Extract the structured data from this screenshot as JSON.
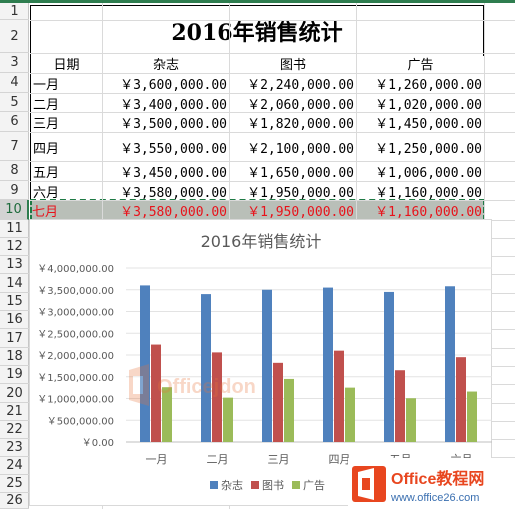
{
  "sheet": {
    "row_numbers": [
      "1",
      "2",
      "3",
      "4",
      "5",
      "6",
      "7",
      "8",
      "9",
      "10",
      "11",
      "12",
      "13",
      "14",
      "15",
      "16",
      "17",
      "18",
      "19",
      "20",
      "21",
      "22",
      "23",
      "24",
      "25",
      "26"
    ],
    "selected_row": "10",
    "title": "2016年销售统计",
    "headers": [
      "日期",
      "杂志",
      "图书",
      "广告"
    ],
    "rows": [
      [
        "一月",
        "￥3,600,000.00",
        "￥2,240,000.00",
        "￥1,260,000.00"
      ],
      [
        "二月",
        "￥3,400,000.00",
        "￥2,060,000.00",
        "￥1,020,000.00"
      ],
      [
        "三月",
        "￥3,500,000.00",
        "￥1,820,000.00",
        "￥1,450,000.00"
      ],
      [
        "四月",
        "￥3,550,000.00",
        "￥2,100,000.00",
        "￥1,250,000.00"
      ],
      [
        "五月",
        "￥3,450,000.00",
        "￥1,650,000.00",
        "￥1,006,000.00"
      ],
      [
        "六月",
        "￥3,580,000.00",
        "￥1,950,000.00",
        "￥1,160,000.00"
      ],
      [
        "七月",
        "￥3,580,000.00",
        "￥1,950,000.00",
        "￥1,160,000.00"
      ]
    ]
  },
  "colors": {
    "magazine": "#4f81bd",
    "book": "#c0504d",
    "ad": "#9bbb59",
    "selection": "#1f7a45",
    "highlight_text": "#e8131b"
  },
  "chart_data": {
    "type": "bar",
    "title": "2016年销售统计",
    "categories": [
      "一月",
      "二月",
      "三月",
      "四月",
      "五月",
      "六月"
    ],
    "series": [
      {
        "name": "杂志",
        "values": [
          3600000,
          3400000,
          3500000,
          3550000,
          3450000,
          3580000
        ]
      },
      {
        "name": "图书",
        "values": [
          2240000,
          2060000,
          1820000,
          2100000,
          1650000,
          1950000
        ]
      },
      {
        "name": "广告",
        "values": [
          1260000,
          1020000,
          1450000,
          1250000,
          1006000,
          1160000
        ]
      }
    ],
    "ylim": [
      0,
      4000000
    ],
    "yticks": [
      "￥0.00",
      "￥500,000.00",
      "￥1,000,000.00",
      "￥1,500,000.00",
      "￥2,000,000.00",
      "￥2,500,000.00",
      "￥3,000,000.00",
      "￥3,500,000.00",
      "￥4,000,000.00"
    ],
    "grid": true,
    "legend": "bottom"
  },
  "watermark": {
    "text": "Officejdon",
    "badge_title": "Office教程网",
    "badge_url": "www.office26.com"
  }
}
